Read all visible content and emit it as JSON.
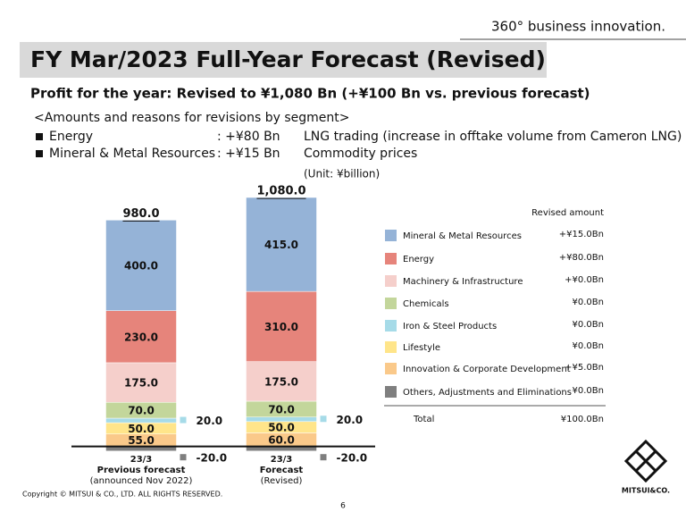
{
  "header": {
    "tagline": "360° business innovation.",
    "title": "FY Mar/2023 Full-Year Forecast (Revised)",
    "subtitle": "Profit for the year: Revised to ¥1,080 Bn (+¥100 Bn vs. previous forecast)"
  },
  "revisions": {
    "heading": "<Amounts and reasons for revisions by segment>",
    "rows": [
      {
        "segment": "Energy",
        "amount": ": +¥80 Bn",
        "reason": "LNG trading (increase in offtake volume from Cameron LNG)"
      },
      {
        "segment": "Mineral & Metal Resources",
        "amount": ": +¥15 Bn",
        "reason": "Commodity prices"
      }
    ]
  },
  "chart_data": {
    "type": "stacked_bar",
    "unit": "(Unit: ¥billion)",
    "categories": [
      [
        "23/3",
        "Previous forecast",
        "(announced Nov 2022)"
      ],
      [
        "23/3",
        "Forecast",
        "(Revised)"
      ]
    ],
    "ylim": [
      -100,
      1100
    ],
    "totals": [
      980,
      1080
    ],
    "total_labels": [
      "980.0",
      "1,080.0"
    ],
    "legend_heading": "Revised amount",
    "series": [
      {
        "name": "Mineral & Metal Resources",
        "color": "#95b3d7",
        "values": [
          400,
          415
        ],
        "value_labels": [
          "400.0",
          "415.0"
        ],
        "revised": "+¥15.0Bn"
      },
      {
        "name": "Energy",
        "color": "#e6847b",
        "values": [
          230,
          310
        ],
        "value_labels": [
          "230.0",
          "310.0"
        ],
        "revised": "+¥80.0Bn"
      },
      {
        "name": "Machinery & Infrastructure",
        "color": "#f5cfcb",
        "values": [
          175,
          175
        ],
        "value_labels": [
          "175.0",
          "175.0"
        ],
        "revised": "+¥0.0Bn"
      },
      {
        "name": "Chemicals",
        "color": "#c3d69b",
        "values": [
          70,
          70
        ],
        "value_labels": [
          "70.0",
          "70.0"
        ],
        "revised": "¥0.0Bn"
      },
      {
        "name": "Iron & Steel Products",
        "color": "#a6dbe8",
        "values": [
          20,
          20
        ],
        "value_labels": [
          "20.0",
          "20.0"
        ],
        "revised": "¥0.0Bn"
      },
      {
        "name": "Lifestyle",
        "color": "#ffe58a",
        "values": [
          50,
          50
        ],
        "value_labels": [
          "50.0",
          "50.0"
        ],
        "revised": "¥0.0Bn"
      },
      {
        "name": "Innovation & Corporate Development",
        "color": "#fac98a",
        "values": [
          55,
          60
        ],
        "value_labels": [
          "55.0",
          "60.0"
        ],
        "revised": "+¥5.0Bn"
      },
      {
        "name": "Others, Adjustments and Eliminations",
        "color": "#7f7f7f",
        "values": [
          -20,
          -20
        ],
        "value_labels": [
          "-20.0",
          "-20.0"
        ],
        "revised": "¥0.0Bn"
      }
    ],
    "total_row": {
      "label": "Total",
      "value": "¥100.0Bn"
    }
  },
  "footer": {
    "copyright": "Copyright © MITSUI & CO., LTD. ALL RIGHTS RESERVED.",
    "page": "6",
    "logo": "MITSUI&CO."
  }
}
